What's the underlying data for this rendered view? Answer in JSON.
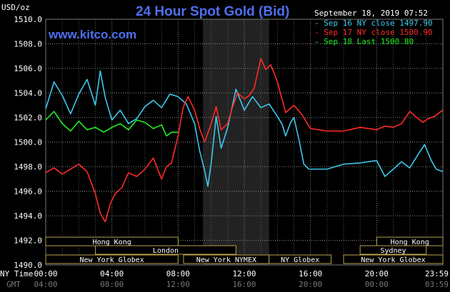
{
  "header": {
    "title": "24 Hour Spot Gold (Bid)",
    "site": "www.kitco.com",
    "date_line": "September 18, 2019 07:52",
    "unit_label": "USD/oz",
    "ny_time_label": "NY Time",
    "gmt_label": "GMT"
  },
  "legend": [
    {
      "text": "Sep 16 NY close 1497.90",
      "color": "#3ec8ec"
    },
    {
      "text": "Sep 17 NY close 1500.90",
      "color": "#ff2a2a"
    },
    {
      "text": "Sep 18 Last 1500.80",
      "color": "#22ee22"
    }
  ],
  "markets": [
    {
      "name": "Hong Kong",
      "start": 0.0,
      "end": 8.0
    },
    {
      "name": "London",
      "start": 3.0,
      "end": 11.5
    },
    {
      "name": "New York Globex",
      "start": 0.0,
      "end": 8.0
    },
    {
      "name": "New York NYMEX",
      "start": 8.33,
      "end": 13.5
    },
    {
      "name": "NY Globex",
      "start": 13.5,
      "end": 17.25
    },
    {
      "name": "Hong Kong",
      "start": 20.0,
      "end": 24.0
    },
    {
      "name": "Sydney",
      "start": 19.0,
      "end": 23.0
    },
    {
      "name": "New York Globex",
      "start": 18.0,
      "end": 24.0
    }
  ],
  "chart_data": {
    "type": "line",
    "title": "24 Hour Spot Gold (Bid)",
    "ylabel": "USD/oz",
    "ylim": [
      1490.0,
      1510.0
    ],
    "xlim": [
      0,
      24
    ],
    "yticks": [
      1490.0,
      1492.0,
      1494.0,
      1496.0,
      1498.0,
      1500.0,
      1502.0,
      1504.0,
      1506.0,
      1508.0,
      1510.0
    ],
    "xticks_ny": [
      "00:00",
      "04:00",
      "08:00",
      "12:00",
      "16:00",
      "20:00",
      "23:59"
    ],
    "xticks_gmt": [
      "04:00",
      "08:00",
      "12:00",
      "16:00",
      "20:00",
      "00:00",
      "03:59"
    ],
    "shaded_hours": [
      9.5,
      13.5
    ],
    "grid": true,
    "legend_position": "top-right",
    "series": [
      {
        "name": "Sep 16 NY close 1497.90",
        "color": "#3ec8ec",
        "x": [
          0,
          0.5,
          1,
          1.5,
          2,
          2.5,
          3,
          3.3,
          3.6,
          4,
          4.5,
          5,
          5.5,
          6,
          6.5,
          7,
          7.5,
          8,
          8.5,
          9,
          9.3,
          9.6,
          9.8,
          10,
          10.3,
          10.6,
          11,
          11.5,
          12,
          12.5,
          13,
          13.5,
          14,
          14.3,
          14.5,
          14.8,
          15,
          15.3,
          15.6,
          15.9,
          16.2,
          16.6,
          17,
          18,
          19,
          20,
          20.5,
          21,
          21.5,
          22,
          22.5,
          22.9,
          23.3,
          23.6,
          23.99
        ],
        "y": [
          1502.7,
          1504.9,
          1503.8,
          1502.3,
          1503.9,
          1505.1,
          1503.0,
          1505.8,
          1503.6,
          1501.8,
          1502.6,
          1501.5,
          1501.9,
          1502.9,
          1503.4,
          1502.8,
          1503.9,
          1503.7,
          1503.1,
          1501.5,
          1499.3,
          1497.7,
          1496.4,
          1498.3,
          1502.1,
          1499.5,
          1501.2,
          1504.3,
          1502.6,
          1503.7,
          1502.8,
          1503.1,
          1502.1,
          1501.4,
          1500.5,
          1501.6,
          1502.0,
          1500.2,
          1498.2,
          1497.8,
          1497.8,
          1497.8,
          1497.8,
          1498.2,
          1498.3,
          1498.5,
          1497.2,
          1497.8,
          1498.4,
          1497.9,
          1499.0,
          1499.8,
          1498.5,
          1497.8,
          1497.6
        ]
      },
      {
        "name": "Sep 17 NY close 1500.90",
        "color": "#ff2a2a",
        "x": [
          0,
          0.5,
          1,
          1.5,
          2,
          2.5,
          3,
          3.3,
          3.6,
          3.9,
          4.2,
          4.6,
          5,
          5.5,
          6,
          6.5,
          7,
          7.3,
          7.6,
          8,
          8.3,
          8.6,
          9,
          9.3,
          9.6,
          10,
          10.3,
          10.6,
          11,
          11.3,
          11.6,
          12,
          12.3,
          12.6,
          13,
          13.3,
          13.6,
          14,
          14.5,
          15,
          15.5,
          16,
          16.5,
          17,
          18,
          19,
          20,
          20.5,
          21,
          21.5,
          22,
          22.5,
          22.8,
          23.1,
          23.5,
          23.99
        ],
        "y": [
          1497.5,
          1497.9,
          1497.4,
          1497.8,
          1498.2,
          1497.6,
          1495.8,
          1494.2,
          1493.5,
          1495.0,
          1495.8,
          1496.3,
          1497.5,
          1497.2,
          1497.8,
          1498.7,
          1497.0,
          1498.0,
          1498.3,
          1500.5,
          1502.8,
          1503.7,
          1502.6,
          1501.1,
          1500.0,
          1501.5,
          1502.9,
          1501.0,
          1501.5,
          1502.9,
          1504.0,
          1503.5,
          1503.8,
          1504.4,
          1506.8,
          1505.9,
          1506.3,
          1504.9,
          1502.4,
          1503.0,
          1502.2,
          1501.1,
          1501.0,
          1500.9,
          1500.9,
          1501.2,
          1501.0,
          1501.3,
          1501.2,
          1501.5,
          1502.5,
          1501.9,
          1501.6,
          1501.9,
          1502.1,
          1502.6
        ]
      },
      {
        "name": "Sep 18 Last 1500.80",
        "color": "#22ee22",
        "x": [
          0,
          0.5,
          1,
          1.5,
          2,
          2.5,
          3,
          3.5,
          4,
          4.5,
          5,
          5.5,
          6,
          6.5,
          7,
          7.3,
          7.6,
          8
        ],
        "y": [
          1501.8,
          1502.5,
          1501.5,
          1500.9,
          1501.7,
          1501.0,
          1501.2,
          1500.8,
          1501.2,
          1501.5,
          1501.0,
          1501.8,
          1501.6,
          1501.1,
          1501.4,
          1500.5,
          1500.8,
          1500.8
        ]
      }
    ]
  }
}
